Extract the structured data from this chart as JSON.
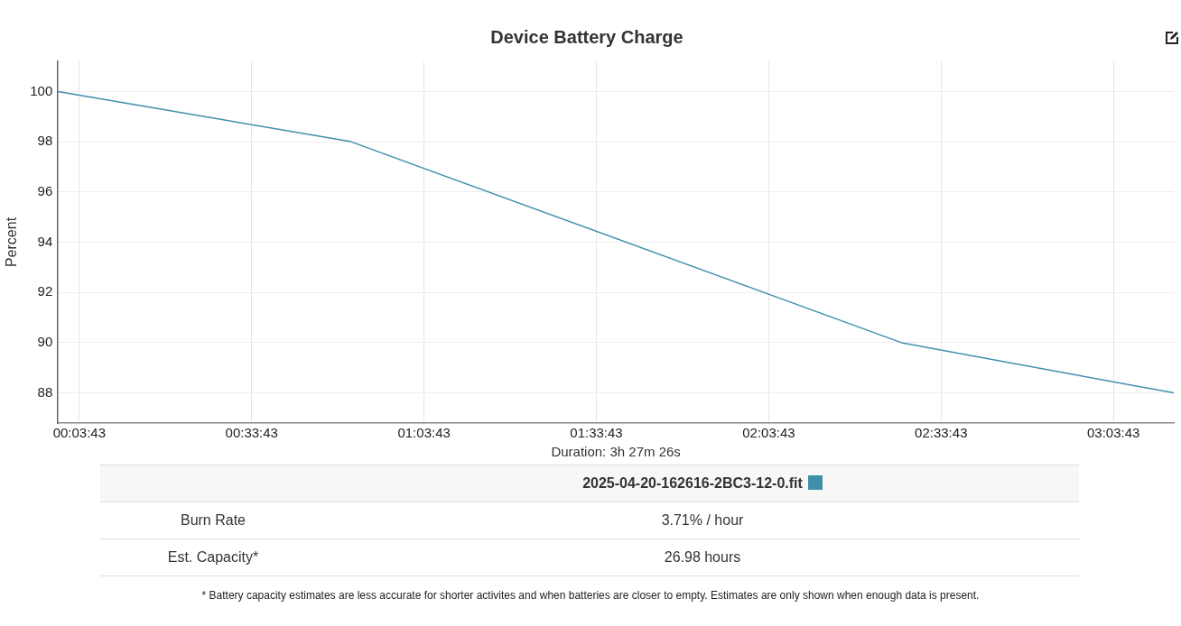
{
  "chart_data": {
    "type": "line",
    "title": "Device Battery Charge",
    "xlabel": "Duration: 3h 27m 26s",
    "ylabel": "Percent",
    "x": [
      0,
      0.85,
      2.447,
      3.237
    ],
    "series": [
      {
        "name": "2025-04-20-162616-2BC3-12-0.fit",
        "color": "#3f8fab",
        "values": [
          100,
          98,
          90,
          88
        ]
      }
    ],
    "xlim": [
      0,
      3.237
    ],
    "ylim": [
      86.8,
      101.2
    ],
    "xticks": [
      {
        "value": 0.0619,
        "label": "00:03:43"
      },
      {
        "value": 0.5619,
        "label": "00:33:43"
      },
      {
        "value": 1.0619,
        "label": "01:03:43"
      },
      {
        "value": 1.5619,
        "label": "01:33:43"
      },
      {
        "value": 2.0619,
        "label": "02:03:43"
      },
      {
        "value": 2.5619,
        "label": "02:33:43"
      },
      {
        "value": 3.0619,
        "label": "03:03:43"
      }
    ],
    "yticks": [
      88,
      90,
      92,
      94,
      96,
      98,
      100
    ],
    "grid": true,
    "legend": "bottom",
    "marker": "none",
    "line_style": "solid",
    "annotations": [
      "Burn Rate",
      "3.71% / hour",
      "Est. Capacity*",
      "26.98 hours",
      "* Battery capacity estimates are less accurate for shorter activites and when batteries are closer to empty. Estimates are only shown when enough data is present."
    ]
  }
}
